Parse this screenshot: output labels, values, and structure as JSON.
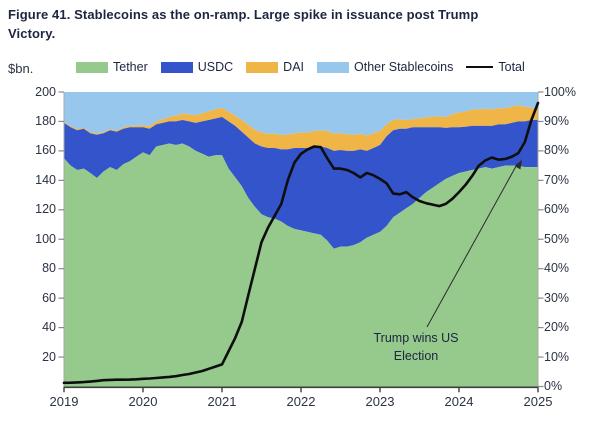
{
  "figure": {
    "title_line1": "Figure 41. Stablecoins as the on-ramp. Large spike in issuance post Trump",
    "title_line2": "Victory.",
    "axis_unit_label": "$bn.",
    "annotation": {
      "line1": "Trump wins US",
      "line2": "Election"
    }
  },
  "legend": {
    "items": [
      {
        "label": "Tether",
        "type": "swatch",
        "color": "#96C98C"
      },
      {
        "label": "USDC",
        "type": "swatch",
        "color": "#3354CA"
      },
      {
        "label": "DAI",
        "type": "swatch",
        "color": "#EFB547"
      },
      {
        "label": "Other Stablecoins",
        "type": "swatch",
        "color": "#98C7EE"
      },
      {
        "label": "Total",
        "type": "line",
        "color": "#0E0E0E"
      }
    ]
  },
  "axes": {
    "y_left": {
      "ticks": [
        "200",
        "180",
        "160",
        "140",
        "120",
        "100",
        "80",
        "60",
        "40",
        "20"
      ],
      "values": [
        200,
        180,
        160,
        140,
        120,
        100,
        80,
        60,
        40,
        20
      ],
      "range": [
        0,
        200
      ]
    },
    "y_right": {
      "ticks": [
        "100%",
        "90%",
        "80%",
        "70%",
        "60%",
        "50%",
        "40%",
        "30%",
        "20%",
        "10%",
        "0%"
      ],
      "values": [
        100,
        90,
        80,
        70,
        60,
        50,
        40,
        30,
        20,
        10,
        0
      ],
      "range": [
        0,
        100
      ]
    },
    "x": {
      "ticks": [
        "2019",
        "2020",
        "2021",
        "2022",
        "2023",
        "2024",
        "2025"
      ],
      "values": [
        2019,
        2020,
        2021,
        2022,
        2023,
        2024,
        2025
      ]
    }
  },
  "colors": {
    "tether": "#96C98C",
    "usdc": "#3354CA",
    "dai": "#EFB547",
    "other": "#98C7EE",
    "total_line": "#0E0E0E",
    "axis_dark": "#3F3F3F",
    "axis_light": "#A8A8A8",
    "text_dark": "#1D2540"
  },
  "chart_data": {
    "type": "area",
    "stacking": "percent",
    "title": "Figure 41. Stablecoins as the on-ramp. Large spike in issuance post Trump Victory.",
    "x_unit": "year, monthly points",
    "x_range": [
      2019,
      2025
    ],
    "points_per_year": 12,
    "left_axis": {
      "label": "$bn.",
      "range": [
        0,
        200
      ],
      "applies_to": "Total"
    },
    "right_axis": {
      "label": "%",
      "range": [
        0,
        100
      ],
      "applies_to": "stacked shares"
    },
    "legend_position": "top",
    "grid": false,
    "annotation": {
      "text": "Trump wins US Election",
      "points_to": {
        "x": 2024.85,
        "total_bn": 158
      }
    },
    "series": [
      {
        "name": "Tether",
        "unit": "% share",
        "color": "#96C98C",
        "values": [
          77.5,
          75.0,
          73.5,
          74.0,
          72.5,
          70.8,
          73.0,
          74.5,
          73.5,
          75.5,
          76.5,
          78.0,
          79.5,
          78.5,
          81.5,
          82.0,
          82.5,
          82.0,
          82.5,
          81.5,
          80.0,
          79.0,
          78.0,
          78.5,
          78.5,
          74.0,
          71.0,
          68.0,
          64.0,
          61.0,
          58.5,
          57.5,
          57.0,
          56.0,
          54.5,
          53.5,
          53.0,
          52.5,
          52.0,
          51.5,
          49.5,
          46.8,
          47.5,
          47.5,
          48.0,
          49.0,
          50.5,
          51.5,
          52.5,
          54.5,
          57.5,
          59.0,
          60.5,
          62.0,
          64.0,
          66.0,
          67.5,
          69.0,
          70.5,
          71.5,
          72.5,
          73.0,
          73.5,
          74.0,
          74.5,
          74.0,
          74.5,
          75.0,
          75.0,
          75.0,
          74.5,
          74.5,
          74.5
        ]
      },
      {
        "name": "USDC",
        "unit": "% share",
        "color": "#3354CA",
        "values": [
          12.0,
          13.0,
          13.5,
          13.5,
          13.5,
          14.7,
          13.0,
          12.5,
          13.0,
          12.0,
          11.5,
          10.0,
          8.5,
          9.0,
          7.5,
          7.5,
          7.5,
          8.0,
          8.0,
          8.5,
          9.5,
          11.0,
          12.5,
          12.5,
          13.0,
          16.0,
          17.5,
          18.5,
          20.5,
          21.5,
          23.0,
          23.5,
          24.0,
          24.5,
          26.0,
          27.5,
          28.0,
          28.5,
          29.5,
          30.0,
          31.5,
          33.2,
          32.8,
          32.5,
          32.0,
          31.5,
          29.5,
          29.5,
          29.5,
          30.5,
          29.5,
          28.5,
          27.0,
          26.0,
          24.0,
          22.0,
          20.5,
          19.0,
          17.3,
          16.5,
          15.5,
          15.2,
          15.0,
          14.5,
          14.0,
          14.5,
          14.5,
          14.0,
          14.5,
          15.0,
          15.5,
          16.0,
          16.0
        ]
      },
      {
        "name": "DAI",
        "unit": "% share",
        "color": "#EFB547",
        "values": [
          0.4,
          0.4,
          0.4,
          0.4,
          0.4,
          0.4,
          0.4,
          0.4,
          0.4,
          0.5,
          0.5,
          0.6,
          0.8,
          0.9,
          1.0,
          1.2,
          1.5,
          2.0,
          2.2,
          2.4,
          2.6,
          2.8,
          3.0,
          3.1,
          3.1,
          3.3,
          3.5,
          4.0,
          4.4,
          4.7,
          4.7,
          4.8,
          4.8,
          4.9,
          5.0,
          5.0,
          5.2,
          5.2,
          5.3,
          5.4,
          5.8,
          5.8,
          5.7,
          5.6,
          5.5,
          5.3,
          5.2,
          5.0,
          4.8,
          4.0,
          3.6,
          3.2,
          3.0,
          2.8,
          3.0,
          3.4,
          3.6,
          3.7,
          3.7,
          4.5,
          5.0,
          5.2,
          5.5,
          5.6,
          5.8,
          5.6,
          5.5,
          5.5,
          5.5,
          5.5,
          5.0,
          4.2,
          4.0
        ]
      },
      {
        "name": "Other Stablecoins",
        "unit": "% share",
        "color": "#98C7EE",
        "values": [
          10.1,
          11.6,
          12.6,
          12.1,
          13.6,
          14.1,
          13.6,
          12.6,
          13.1,
          12.0,
          11.5,
          11.4,
          11.2,
          11.6,
          10.0,
          9.3,
          8.5,
          8.0,
          7.3,
          7.6,
          7.9,
          7.2,
          6.5,
          5.9,
          5.4,
          6.7,
          8.0,
          9.5,
          11.1,
          12.8,
          13.8,
          14.2,
          14.2,
          14.6,
          14.5,
          14.0,
          13.8,
          13.8,
          13.2,
          13.1,
          13.2,
          14.2,
          14.0,
          14.4,
          14.5,
          14.2,
          14.8,
          14.0,
          13.2,
          11.0,
          9.4,
          9.3,
          9.5,
          9.2,
          9.0,
          8.6,
          8.4,
          8.3,
          8.5,
          7.5,
          7.0,
          6.6,
          6.0,
          5.9,
          5.7,
          5.9,
          5.5,
          5.5,
          5.0,
          4.5,
          5.0,
          5.3,
          5.5
        ]
      },
      {
        "name": "Total",
        "unit": "$bn",
        "color": "#0E0E0E",
        "axis": "left",
        "values": [
          2.5,
          2.6,
          2.8,
          3.0,
          3.3,
          3.8,
          4.3,
          4.5,
          4.6,
          4.6,
          4.7,
          4.9,
          5.2,
          5.4,
          5.8,
          6.2,
          6.5,
          7.0,
          7.8,
          8.5,
          9.5,
          10.5,
          12.0,
          13.5,
          15.0,
          24.0,
          33.0,
          44.0,
          62.0,
          80.0,
          98.0,
          108.0,
          116.0,
          124.0,
          140.0,
          152.0,
          158.0,
          161.0,
          163.0,
          162.5,
          155.0,
          148.0,
          148.0,
          147.0,
          145.0,
          142.0,
          145.0,
          143.5,
          141.0,
          138.0,
          131.0,
          130.5,
          132.0,
          128.5,
          126.0,
          124.5,
          123.5,
          122.5,
          124.0,
          127.5,
          132.0,
          137.0,
          143.0,
          150.0,
          153.5,
          155.5,
          154.0,
          154.5,
          156.0,
          158.5,
          166.0,
          181.0,
          192.5
        ]
      }
    ]
  }
}
